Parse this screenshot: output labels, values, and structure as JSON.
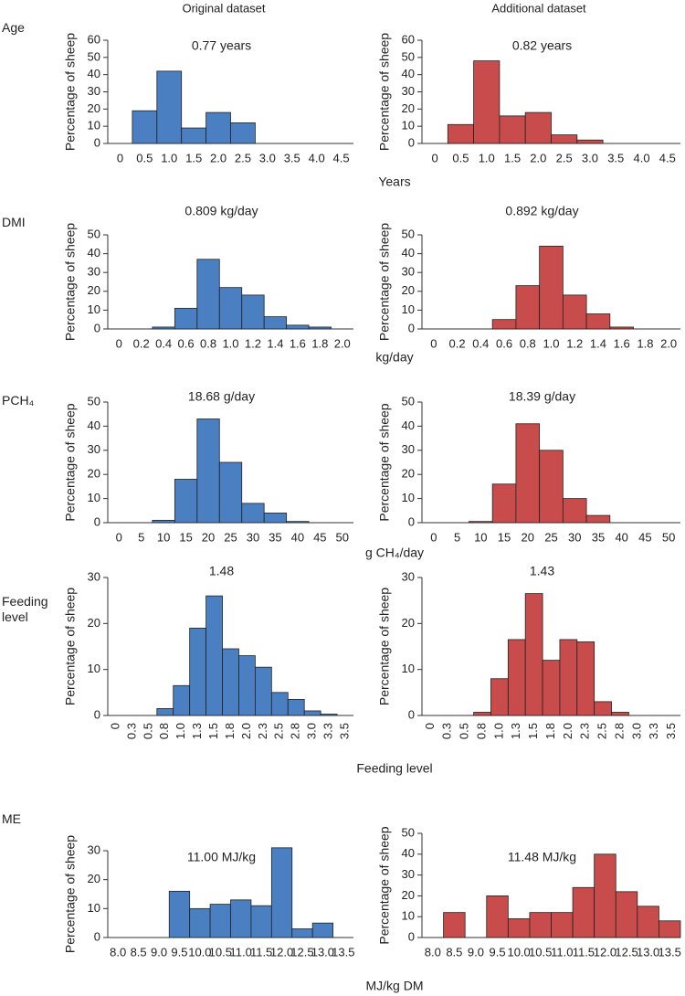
{
  "column_titles": [
    "Original dataset",
    "Additional dataset"
  ],
  "rows": [
    {
      "label": "Age",
      "xlabel": "Years"
    },
    {
      "label": "DMI",
      "xlabel": "kg/day"
    },
    {
      "label": "PCH₄",
      "xlabel": "g CH₄/day"
    },
    {
      "label": "Feeding level",
      "xlabel": "Feeding level"
    },
    {
      "label": "ME",
      "xlabel": "MJ/kg DM"
    }
  ],
  "chart_data": [
    {
      "type": "histogram",
      "annotation": "0.77 years",
      "ylabel": "Percentage of sheep",
      "color": "#4a7fc1",
      "bins": [
        0.25,
        0.75,
        1.25,
        1.75,
        2.25,
        2.75
      ],
      "values": [
        19,
        42,
        9,
        18,
        12
      ],
      "xlim": [
        -0.25,
        4.75
      ],
      "xticks": [
        0,
        0.5,
        {
          "value": 1,
          "label": "1.0"
        },
        1.5,
        {
          "value": 2,
          "label": "2.0"
        },
        2.5,
        {
          "value": 3,
          "label": "3.0"
        },
        3.5,
        {
          "value": 4,
          "label": "4.0"
        },
        4.5
      ],
      "ylim": [
        0,
        60
      ],
      "yticks": [
        0,
        10,
        20,
        30,
        40,
        50,
        60
      ]
    },
    {
      "type": "histogram",
      "annotation": "0.82 years",
      "ylabel": "Percentage of sheep",
      "color": "#c94c4c",
      "bins": [
        0.25,
        0.75,
        1.25,
        1.75,
        2.25,
        2.75,
        3.25
      ],
      "values": [
        11,
        48,
        16,
        18,
        5,
        2
      ],
      "xlim": [
        -0.25,
        4.75
      ],
      "xticks": [
        0,
        0.5,
        {
          "value": 1,
          "label": "1.0"
        },
        1.5,
        {
          "value": 2,
          "label": "2.0"
        },
        2.5,
        {
          "value": 3,
          "label": "3.0"
        },
        3.5,
        {
          "value": 4,
          "label": "4.0"
        },
        4.5
      ],
      "ylim": [
        0,
        60
      ],
      "yticks": [
        0,
        10,
        20,
        30,
        40,
        50,
        60
      ]
    },
    {
      "type": "histogram",
      "annotation": "0.809 kg/day",
      "ylabel": "Percentage of sheep",
      "color": "#4a7fc1",
      "bins": [
        0.3,
        0.5,
        0.7,
        0.9,
        1.1,
        1.3,
        1.5,
        1.7,
        1.9
      ],
      "values": [
        1,
        11,
        37,
        22,
        18,
        6.5,
        2,
        1
      ],
      "xlim": [
        -0.1,
        2.1
      ],
      "xticks": [
        0,
        0.2,
        0.4,
        0.6,
        0.8,
        {
          "value": 1,
          "label": "1.0"
        },
        1.2,
        1.4,
        1.6,
        1.8,
        {
          "value": 2,
          "label": "2.0"
        }
      ],
      "ylim": [
        0,
        50
      ],
      "yticks": [
        0,
        10,
        20,
        30,
        40,
        50
      ]
    },
    {
      "type": "histogram",
      "annotation": "0.892 kg/day",
      "ylabel": "Percentage of sheep",
      "color": "#c94c4c",
      "bins": [
        0.5,
        0.7,
        0.9,
        1.1,
        1.3,
        1.5,
        1.7
      ],
      "values": [
        5,
        23,
        44,
        18,
        8,
        1
      ],
      "xlim": [
        -0.1,
        2.1
      ],
      "xticks": [
        0,
        0.2,
        0.4,
        0.6,
        0.8,
        {
          "value": 1,
          "label": "1.0"
        },
        1.2,
        1.4,
        1.6,
        1.8,
        {
          "value": 2,
          "label": "2.0"
        }
      ],
      "ylim": [
        0,
        50
      ],
      "yticks": [
        0,
        10,
        20,
        30,
        40,
        50
      ]
    },
    {
      "type": "histogram",
      "annotation": "18.68 g/day",
      "ylabel": "Percentage of sheep",
      "color": "#4a7fc1",
      "bins": [
        7.5,
        12.5,
        17.5,
        22.5,
        27.5,
        32.5,
        37.5,
        42.5
      ],
      "values": [
        1,
        18,
        43,
        25,
        8,
        4,
        0.5
      ],
      "xlim": [
        -2.5,
        52.5
      ],
      "xticks": [
        0,
        5,
        10,
        15,
        20,
        25,
        30,
        35,
        40,
        45,
        50
      ],
      "ylim": [
        0,
        50
      ],
      "yticks": [
        0,
        10,
        20,
        30,
        40,
        50
      ]
    },
    {
      "type": "histogram",
      "annotation": "18.39 g/day",
      "ylabel": "Percentage of sheep",
      "color": "#c94c4c",
      "bins": [
        7.5,
        12.5,
        17.5,
        22.5,
        27.5,
        32.5,
        37.5
      ],
      "values": [
        0.5,
        16,
        41,
        30,
        10,
        3
      ],
      "xlim": [
        -2.5,
        52.5
      ],
      "xticks": [
        0,
        5,
        10,
        15,
        20,
        25,
        30,
        35,
        40,
        45,
        50
      ],
      "ylim": [
        0,
        50
      ],
      "yticks": [
        0,
        10,
        20,
        30,
        40,
        50
      ]
    },
    {
      "type": "histogram",
      "annotation": "1.48",
      "ylabel": "Percentage of sheep",
      "color": "#4a7fc1",
      "bins": [
        0.625,
        0.875,
        1.125,
        1.375,
        1.625,
        1.875,
        2.125,
        2.375,
        2.625,
        2.875,
        3.125,
        3.375
      ],
      "values": [
        1.5,
        6.5,
        19,
        26,
        14.5,
        13,
        10.5,
        5,
        3.5,
        1,
        0.3
      ],
      "xlim": [
        -0.125,
        3.625
      ],
      "xticks": [
        0,
        {
          "value": 0.25,
          "label": "0.3"
        },
        0.5,
        {
          "value": 0.75,
          "label": "0.8"
        },
        {
          "value": 1,
          "label": "1.0"
        },
        {
          "value": 1.25,
          "label": "1.3"
        },
        1.5,
        {
          "value": 1.75,
          "label": "1.8"
        },
        {
          "value": 2,
          "label": "2.0"
        },
        {
          "value": 2.25,
          "label": "2.3"
        },
        2.5,
        {
          "value": 2.75,
          "label": "2.8"
        },
        {
          "value": 3,
          "label": "3.0"
        },
        {
          "value": 3.25,
          "label": "3.3"
        },
        3.5
      ],
      "ylim": [
        0,
        30
      ],
      "yticks": [
        0,
        10,
        20,
        30
      ]
    },
    {
      "type": "histogram",
      "annotation": "1.43",
      "ylabel": "Percentage of sheep",
      "color": "#c94c4c",
      "bins": [
        0.625,
        0.875,
        1.125,
        1.375,
        1.625,
        1.875,
        2.125,
        2.375,
        2.625,
        2.875
      ],
      "values": [
        0.7,
        8,
        16.5,
        26.5,
        12,
        16.5,
        16,
        3,
        0.7
      ],
      "xlim": [
        -0.125,
        3.625
      ],
      "xticks": [
        0,
        {
          "value": 0.25,
          "label": "0.3"
        },
        0.5,
        {
          "value": 0.75,
          "label": "0.8"
        },
        {
          "value": 1,
          "label": "1.0"
        },
        {
          "value": 1.25,
          "label": "1.3"
        },
        1.5,
        {
          "value": 1.75,
          "label": "1.8"
        },
        {
          "value": 2,
          "label": "2.0"
        },
        {
          "value": 2.25,
          "label": "2.3"
        },
        2.5,
        {
          "value": 2.75,
          "label": "2.8"
        },
        {
          "value": 3,
          "label": "3.0"
        },
        {
          "value": 3.25,
          "label": "3.3"
        },
        3.5
      ],
      "ylim": [
        0,
        30
      ],
      "yticks": [
        0,
        10,
        20,
        30
      ]
    },
    {
      "type": "histogram",
      "annotation": "11.00 MJ/kg",
      "ylabel": "Percentage of sheep",
      "color": "#4a7fc1",
      "bins": [
        9.25,
        9.75,
        10.25,
        10.75,
        11.25,
        11.75,
        12.25,
        12.75,
        13.25
      ],
      "values": [
        16,
        10,
        11.5,
        13,
        11,
        31,
        3,
        5
      ],
      "xlim": [
        7.75,
        13.75
      ],
      "xticks": [
        {
          "value": 8,
          "label": "8.0"
        },
        8.5,
        {
          "value": 9,
          "label": "9.0"
        },
        9.5,
        {
          "value": 10,
          "label": "10.0"
        },
        10.5,
        {
          "value": 11,
          "label": "11.0"
        },
        11.5,
        {
          "value": 12,
          "label": "12.0"
        },
        12.5,
        {
          "value": 13,
          "label": "13.0"
        },
        13.5
      ],
      "ylim": [
        0,
        30
      ],
      "yticks": [
        0,
        10,
        20,
        30
      ]
    },
    {
      "type": "histogram",
      "annotation": "11.48 MJ/kg",
      "ylabel": "Percentage of sheep",
      "color": "#c94c4c",
      "bins": [
        8.25,
        8.75,
        9.25,
        9.75,
        10.25,
        10.75,
        11.25,
        11.75,
        12.25,
        12.75,
        13.25,
        13.75
      ],
      "values": [
        12,
        0,
        20,
        9,
        12,
        12,
        24,
        40,
        22,
        15,
        8
      ],
      "xlim": [
        7.75,
        13.75
      ],
      "xticks": [
        {
          "value": 8,
          "label": "8.0"
        },
        8.5,
        {
          "value": 9,
          "label": "9.0"
        },
        9.5,
        {
          "value": 10,
          "label": "10.0"
        },
        10.5,
        {
          "value": 11,
          "label": "11.0"
        },
        11.5,
        {
          "value": 12,
          "label": "12.0"
        },
        12.5,
        {
          "value": 13,
          "label": "13.0"
        },
        13.5
      ],
      "ylim": [
        0,
        50
      ],
      "yticks": [
        0,
        10,
        20,
        30,
        40,
        50
      ]
    }
  ]
}
